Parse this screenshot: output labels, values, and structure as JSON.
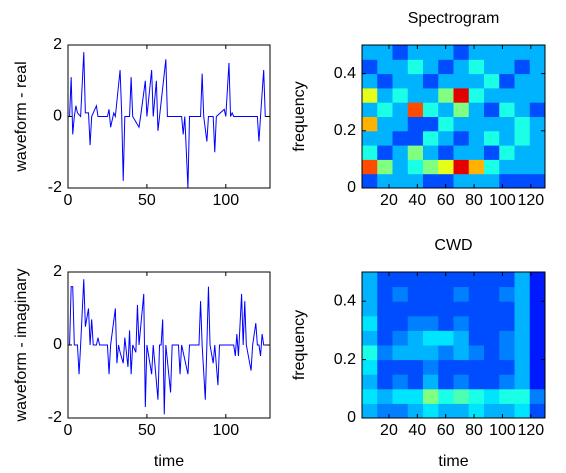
{
  "chart_data": [
    {
      "type": "line",
      "ylabel": "waveform - real",
      "color": "#0000ff",
      "x": [
        1,
        2,
        3,
        4,
        5,
        6,
        8,
        10,
        11,
        13,
        14,
        15,
        17,
        18,
        19,
        25,
        26,
        27,
        29,
        30,
        33,
        34,
        35,
        36,
        39,
        40,
        41,
        45,
        46,
        49,
        50,
        53,
        54,
        56,
        57,
        58,
        62,
        63,
        72,
        73,
        74,
        76,
        77,
        84,
        85,
        86,
        88,
        89,
        92,
        93,
        94,
        99,
        100,
        102,
        103,
        104,
        105,
        120,
        121,
        122,
        124,
        125,
        128
      ],
      "values": [
        0,
        1.1,
        -0.5,
        0,
        0.3,
        0.1,
        0,
        1.8,
        0.1,
        0.1,
        -0.8,
        0,
        0.2,
        0.3,
        0,
        0,
        0.2,
        -0.3,
        0.1,
        0,
        1.3,
        0.1,
        -1.8,
        0,
        0,
        1.1,
        0,
        -0.3,
        0,
        1.0,
        0,
        1.3,
        0,
        1.0,
        -0.4,
        0,
        1.6,
        0,
        0,
        -0.5,
        0,
        -2,
        0,
        0,
        1.2,
        0,
        -0.7,
        0,
        0,
        -1.0,
        0,
        0.2,
        0,
        1.5,
        0,
        0.1,
        0,
        0,
        -0.7,
        0,
        1.3,
        0,
        0
      ],
      "xlim": [
        0,
        128
      ],
      "xticks": [
        0,
        50,
        100
      ],
      "ylim": [
        -2,
        2
      ],
      "yticks": [
        -2,
        0,
        2
      ]
    },
    {
      "type": "heatmap",
      "title": "Spectrogram",
      "ylabel": "frequency",
      "xlim": [
        1,
        130
      ],
      "xticks": [
        20,
        40,
        60,
        80,
        100,
        120
      ],
      "ylim": [
        0,
        0.5
      ],
      "yticks": [
        0,
        0.2,
        0.4
      ],
      "z": [
        [
          0.2,
          0.3,
          0.3,
          0.3,
          0.2,
          0.2,
          0.3,
          0.3,
          0.3,
          0.2,
          0.2,
          0.2
        ],
        [
          0.8,
          0.5,
          0.3,
          0.4,
          0.5,
          0.6,
          0.9,
          0.7,
          0.4,
          0.3,
          0.3,
          0.3
        ],
        [
          0.4,
          0.2,
          0.3,
          0.5,
          0.3,
          0.2,
          0.3,
          0.3,
          0.2,
          0.4,
          0.3,
          0.3
        ],
        [
          0.3,
          0.3,
          0.2,
          0.2,
          0.4,
          0.3,
          0.2,
          0.3,
          0.4,
          0.3,
          0.4,
          0.3
        ],
        [
          0.7,
          0.3,
          0.3,
          0.2,
          0.2,
          0.4,
          0.3,
          0.3,
          0.3,
          0.3,
          0.4,
          0.3
        ],
        [
          0.3,
          0.4,
          0.3,
          0.8,
          0.4,
          0.3,
          0.5,
          0.3,
          0.2,
          0.4,
          0.3,
          0.2
        ],
        [
          0.6,
          0.3,
          0.4,
          0.3,
          0.3,
          0.5,
          0.9,
          0.4,
          0.3,
          0.3,
          0.3,
          0.3
        ],
        [
          0.3,
          0.2,
          0.3,
          0.3,
          0.2,
          0.3,
          0.3,
          0.3,
          0.4,
          0.2,
          0.3,
          0.3
        ],
        [
          0.2,
          0.3,
          0.3,
          0.4,
          0.3,
          0.2,
          0.3,
          0.4,
          0.3,
          0.3,
          0.2,
          0.3
        ],
        [
          0.3,
          0.3,
          0.2,
          0.3,
          0.3,
          0.3,
          0.2,
          0.3,
          0.3,
          0.3,
          0.3,
          0.3
        ]
      ]
    },
    {
      "type": "line",
      "ylabel": "waveform - imaginary",
      "xlabel": "time",
      "color": "#0000ff",
      "x": [
        1,
        2,
        3,
        4,
        6,
        7,
        8,
        10,
        11,
        13,
        14,
        15,
        16,
        18,
        19,
        20,
        25,
        26,
        27,
        30,
        31,
        32,
        33,
        35,
        36,
        38,
        39,
        40,
        41,
        43,
        44,
        45,
        48,
        49,
        50,
        53,
        54,
        57,
        58,
        59,
        60,
        61,
        62,
        65,
        66,
        70,
        71,
        72,
        76,
        77,
        83,
        84,
        85,
        87,
        88,
        89,
        90,
        92,
        93,
        95,
        96,
        105,
        106,
        107,
        108,
        110,
        111,
        112,
        113,
        116,
        117,
        119,
        120,
        121,
        122,
        123,
        124,
        128
      ],
      "values": [
        0,
        1.6,
        1.6,
        0,
        0,
        -0.8,
        0,
        1.8,
        0.5,
        1.0,
        0,
        0.7,
        0,
        0,
        0.2,
        0,
        0,
        -0.8,
        0,
        1.0,
        -0.5,
        0,
        -0.2,
        -0.5,
        0.2,
        -0.6,
        0.4,
        -0.8,
        0,
        -0.2,
        1.1,
        0,
        1.4,
        -1.7,
        0,
        -0.8,
        0,
        -1.5,
        0,
        0,
        0.7,
        -1.9,
        0,
        -1.3,
        0,
        0,
        -0.8,
        0,
        -0.8,
        0,
        0,
        1.2,
        0,
        -1.5,
        0,
        1.6,
        0,
        -0.5,
        0,
        -1.1,
        0,
        0,
        -0.3,
        0.3,
        -0.3,
        1.4,
        0,
        1.2,
        0,
        -0.7,
        0,
        0.6,
        0,
        0,
        -0.3,
        0.3,
        0,
        0
      ],
      "xlim": [
        0,
        128
      ],
      "xticks": [
        0,
        50,
        100
      ],
      "ylim": [
        -2,
        2
      ],
      "yticks": [
        -2,
        0,
        2
      ]
    },
    {
      "type": "heatmap",
      "title": "CWD",
      "ylabel": "frequency",
      "xlabel": "time",
      "xlim": [
        1,
        130
      ],
      "xticks": [
        20,
        40,
        60,
        80,
        100,
        120
      ],
      "ylim": [
        0,
        0.5
      ],
      "yticks": [
        0,
        0.2,
        0.4
      ],
      "z": [
        [
          0.3,
          0.25,
          0.25,
          0.3,
          0.35,
          0.3,
          0.3,
          0.35,
          0.3,
          0.3,
          0.35,
          0.2
        ],
        [
          0.35,
          0.3,
          0.35,
          0.35,
          0.5,
          0.4,
          0.45,
          0.4,
          0.35,
          0.4,
          0.4,
          0.25
        ],
        [
          0.3,
          0.2,
          0.25,
          0.2,
          0.3,
          0.2,
          0.25,
          0.2,
          0.2,
          0.25,
          0.3,
          0.15
        ],
        [
          0.35,
          0.2,
          0.2,
          0.2,
          0.25,
          0.2,
          0.2,
          0.2,
          0.2,
          0.2,
          0.3,
          0.15
        ],
        [
          0.4,
          0.25,
          0.3,
          0.3,
          0.3,
          0.25,
          0.3,
          0.25,
          0.2,
          0.25,
          0.3,
          0.15
        ],
        [
          0.3,
          0.2,
          0.25,
          0.3,
          0.35,
          0.35,
          0.3,
          0.2,
          0.2,
          0.25,
          0.3,
          0.15
        ],
        [
          0.35,
          0.2,
          0.2,
          0.25,
          0.25,
          0.2,
          0.25,
          0.2,
          0.2,
          0.2,
          0.3,
          0.15
        ],
        [
          0.3,
          0.2,
          0.2,
          0.2,
          0.2,
          0.2,
          0.2,
          0.2,
          0.2,
          0.2,
          0.3,
          0.15
        ],
        [
          0.3,
          0.2,
          0.25,
          0.2,
          0.2,
          0.2,
          0.25,
          0.2,
          0.2,
          0.25,
          0.3,
          0.15
        ],
        [
          0.3,
          0.2,
          0.2,
          0.2,
          0.2,
          0.2,
          0.2,
          0.2,
          0.2,
          0.2,
          0.3,
          0.15
        ]
      ]
    }
  ]
}
